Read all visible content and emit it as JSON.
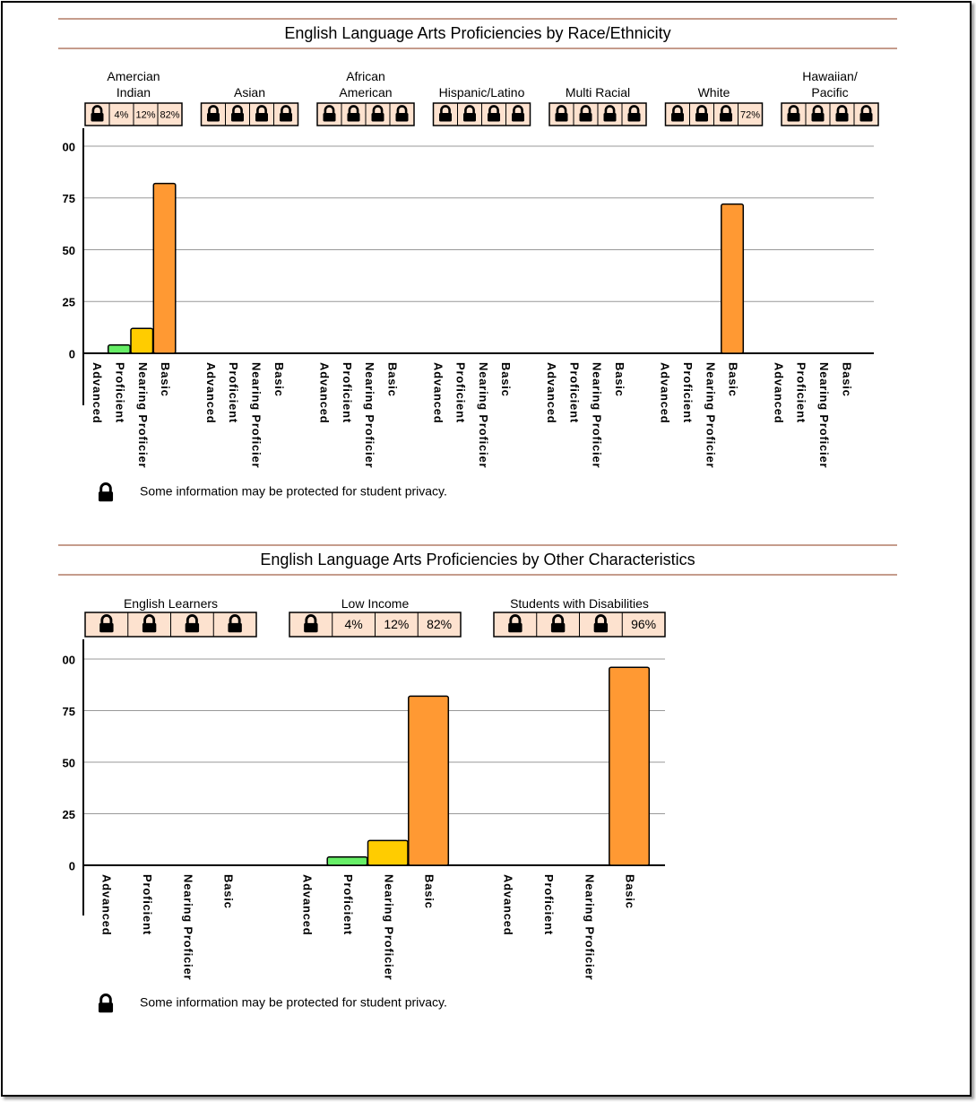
{
  "chart_data": [
    {
      "type": "bar",
      "title": "English Language Arts Proficiencies by Race/Ethnicity",
      "categories": [
        "Advanced",
        "Proficient",
        "Nearing Proficier",
        "Basic"
      ],
      "colors": [
        null,
        "#66ee66",
        "#ffcc00",
        "#ff9933"
      ],
      "ylim": [
        0,
        100
      ],
      "yticks": [
        0,
        25,
        50,
        75,
        {
          "value": 100,
          "label": "00"
        }
      ],
      "grid": true,
      "groups": [
        {
          "name": "Amercian Indian",
          "values": [
            null,
            4,
            12,
            82
          ],
          "value_labels": [
            null,
            "4%",
            "12%",
            "82%"
          ]
        },
        {
          "name": "Asian",
          "values": [
            null,
            null,
            null,
            null
          ],
          "value_labels": [
            null,
            null,
            null,
            null
          ]
        },
        {
          "name": "African American",
          "values": [
            null,
            null,
            null,
            null
          ],
          "value_labels": [
            null,
            null,
            null,
            null
          ]
        },
        {
          "name": "Hispanic/Latino",
          "values": [
            null,
            null,
            null,
            null
          ],
          "value_labels": [
            null,
            null,
            null,
            null
          ]
        },
        {
          "name": "Multi Racial",
          "values": [
            null,
            null,
            null,
            null
          ],
          "value_labels": [
            null,
            null,
            null,
            null
          ]
        },
        {
          "name": "White",
          "values": [
            null,
            null,
            null,
            72
          ],
          "value_labels": [
            null,
            null,
            null,
            "72%"
          ]
        },
        {
          "name": "Hawaiian/ Pacific",
          "values": [
            null,
            null,
            null,
            null
          ],
          "value_labels": [
            null,
            null,
            null,
            null
          ]
        }
      ],
      "note": "Some information may be protected for student privacy."
    },
    {
      "type": "bar",
      "title": "English Language Arts Proficiencies by Other Characteristics",
      "categories": [
        "Advanced",
        "Proficient",
        "Nearing Proficier",
        "Basic"
      ],
      "colors": [
        null,
        "#66ee66",
        "#ffcc00",
        "#ff9933"
      ],
      "ylim": [
        0,
        100
      ],
      "yticks": [
        0,
        25,
        50,
        75,
        {
          "value": 100,
          "label": "00"
        }
      ],
      "grid": true,
      "groups": [
        {
          "name": "English Learners",
          "values": [
            null,
            null,
            null,
            null
          ],
          "value_labels": [
            null,
            null,
            null,
            null
          ]
        },
        {
          "name": "Low Income",
          "values": [
            null,
            4,
            12,
            82
          ],
          "value_labels": [
            null,
            "4%",
            "12%",
            "82%"
          ]
        },
        {
          "name": "Students with Disabilities",
          "values": [
            null,
            null,
            null,
            96
          ],
          "value_labels": [
            null,
            null,
            null,
            "96%"
          ]
        }
      ],
      "note": "Some information may be protected for student privacy."
    }
  ]
}
